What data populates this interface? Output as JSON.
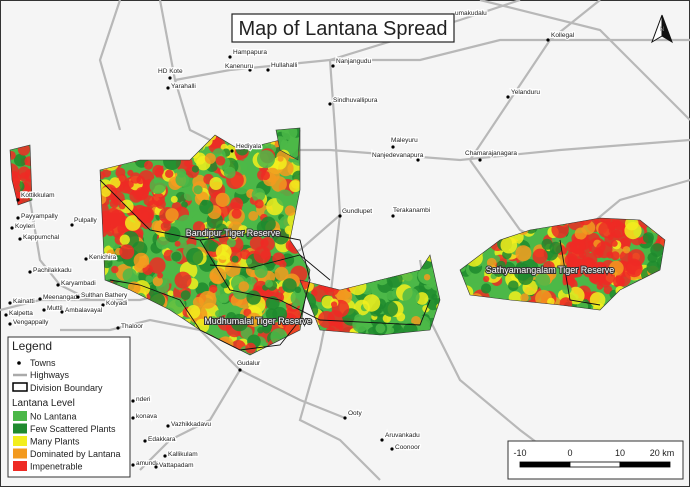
{
  "title": "Map of Lantana Spread",
  "north_arrow": "N",
  "towns": [
    "umakudalu",
    "Kollegal",
    "Hampapura",
    "Kanenuru",
    "Hullahalli",
    "Nanjangudu",
    "HD Kote",
    "Yarahalli",
    "Yelanduru",
    "Sindhuvallipura",
    "Maleyuru",
    "Nanjedevanapura",
    "Chamarajanagara",
    "Hediyala",
    "Gundlupet",
    "Terakanambi",
    "Kottikkulam",
    "Payyampally",
    "Koyleri",
    "Pulpally",
    "Kappumchal",
    "Kenichira",
    "Pachilakkadu",
    "Karyambadi",
    "Meenangadi",
    "Sulthan Bathery",
    "Kolyadi",
    "Kainatti",
    "Muttil",
    "Ambalavayal",
    "Kalpetta",
    "Vengappally",
    "Thaloor",
    "Gudalur",
    "Ooty",
    "Aruvankadu",
    "Coonoor",
    "nderi",
    "konava",
    "Vazhikkadavu",
    "Edakkara",
    "Kallikulam",
    "amunda",
    "Vattapadam"
  ],
  "reserves": [
    "Bandipur Tiger Reserve",
    "Mudhumalai Tiger Reserve",
    "Sathyamangalam Tiger Reserve"
  ],
  "legend": {
    "title": "Legend",
    "towns": "Towns",
    "highways": "Highways",
    "boundary": "Division Boundary",
    "level_title": "Lantana Level",
    "levels": [
      {
        "name": "No Lantana",
        "color": "#4cb848"
      },
      {
        "name": "Few Scattered Plants",
        "color": "#1f8a2e"
      },
      {
        "name": "Many Plants",
        "color": "#f2ee1d"
      },
      {
        "name": "Dominated by Lantana",
        "color": "#f39a1e"
      },
      {
        "name": "Impenetrable",
        "color": "#ee2a24"
      }
    ]
  },
  "scale_bar": {
    "ticks": [
      -10,
      0,
      10,
      {
        "value": 20,
        "label": "20 km"
      }
    ]
  }
}
